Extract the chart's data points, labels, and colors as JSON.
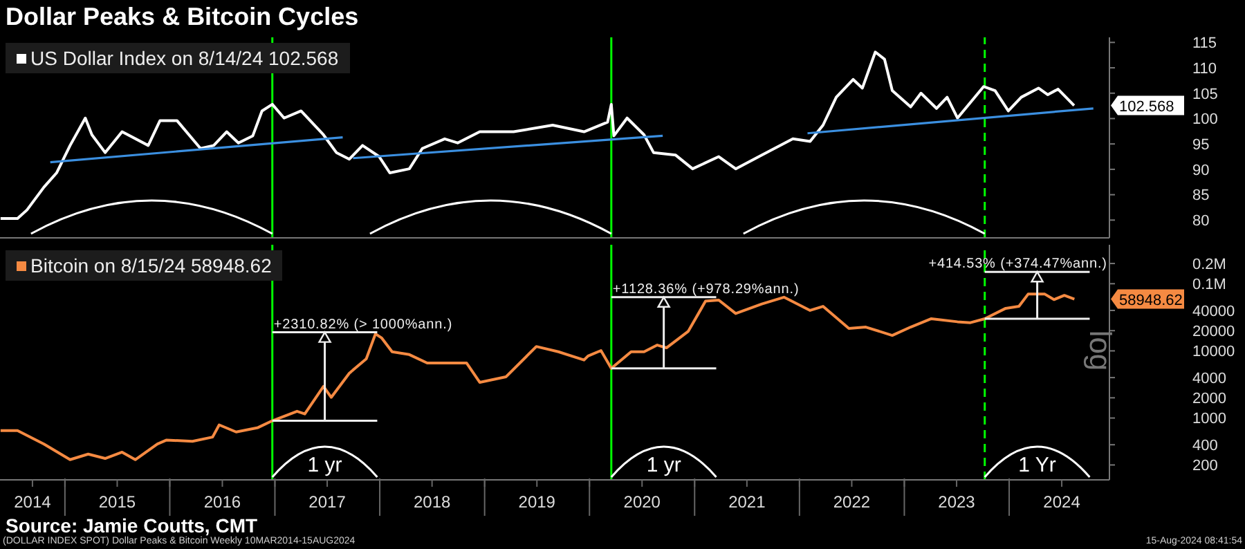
{
  "chart_data": [
    {
      "type": "line",
      "title": "Dollar Peaks & Bitcoin Cycles",
      "xlim": [
        "2014-05-20",
        "2024-12-15"
      ],
      "ylim": [
        76.5,
        116
      ],
      "yticks": [
        80,
        85,
        90,
        95,
        100,
        105,
        110,
        115
      ],
      "tick_labels": "y",
      "legend": "top left",
      "marker": "none",
      "line_style": "solid",
      "grid": false,
      "series": [
        {
          "name": "US Dollar Index on 8/14/24 102.568",
          "color": "#ffffff",
          "x": [
            "2014-05-22",
            "2014-07-20",
            "2014-08-22",
            "2014-10-20",
            "2014-12-03",
            "2015-01-19",
            "2015-03-13",
            "2015-04-05",
            "2015-05-21",
            "2015-07-19",
            "2015-10-18",
            "2015-11-28",
            "2016-01-26",
            "2016-04-17",
            "2016-06-02",
            "2016-07-17",
            "2016-08-27",
            "2016-10-16",
            "2016-11-17",
            "2016-12-23",
            "2017-02-02",
            "2017-04-02",
            "2017-06-19",
            "2017-08-03",
            "2017-09-17",
            "2017-11-02",
            "2017-12-30",
            "2018-02-05",
            "2018-04-14",
            "2018-05-29",
            "2018-08-15",
            "2018-09-29",
            "2018-12-15",
            "2019-04-12",
            "2019-08-26",
            "2019-12-13",
            "2020-03-04",
            "2020-03-17",
            "2020-03-26",
            "2020-05-11",
            "2020-07-09",
            "2020-08-11",
            "2020-10-27",
            "2020-12-25",
            "2021-03-26",
            "2021-05-24",
            "2021-08-23",
            "2021-12-09",
            "2022-02-07",
            "2022-03-24",
            "2022-05-09",
            "2022-07-07",
            "2022-08-08",
            "2022-09-22",
            "2022-10-24",
            "2022-11-20",
            "2023-01-23",
            "2023-02-28",
            "2023-04-23",
            "2023-05-30",
            "2023-07-05",
            "2023-10-04",
            "2023-11-13",
            "2023-12-29",
            "2024-02-12",
            "2024-04-12",
            "2024-05-14",
            "2024-06-19",
            "2024-08-14"
          ],
          "values": [
            80.3,
            80.3,
            82,
            86.5,
            89.3,
            94.7,
            100.1,
            96.8,
            93.3,
            97.4,
            94.7,
            99.6,
            99.6,
            94.1,
            94.7,
            97.4,
            95.2,
            96.6,
            101.5,
            102.8,
            100.1,
            101.5,
            96.8,
            93.3,
            92,
            94.7,
            92.5,
            89.3,
            90.1,
            94.1,
            96,
            95.2,
            97.4,
            97.4,
            98.7,
            97.4,
            99.3,
            102.8,
            96.6,
            100.1,
            96.8,
            93.3,
            92.8,
            90.1,
            92.5,
            90.1,
            92.8,
            96,
            95.5,
            98.7,
            104.2,
            107.7,
            106,
            113.1,
            111.7,
            105.5,
            102.3,
            105,
            102,
            104.2,
            100.1,
            106.3,
            105.5,
            101.5,
            104.2,
            106,
            104.7,
            105.8,
            102.568
          ]
        },
        {
          "type": "line",
          "color": "#3b8fe0",
          "x": [
            "2014-11-11",
            "2017-08-25"
          ],
          "values": [
            91.4,
            96.3
          ]
        },
        {
          "type": "line",
          "color": "#3b8fe0",
          "x": [
            "2017-09-30",
            "2020-09-12"
          ],
          "values": [
            92.2,
            96.6
          ]
        },
        {
          "type": "line",
          "color": "#3b8fe0",
          "x": [
            "2022-01-29",
            "2024-10-20"
          ],
          "values": [
            97.1,
            102
          ]
        }
      ],
      "ref_lines": [
        {
          "axis": "x",
          "value": "2016-12-23",
          "color": "#00ff00",
          "line_style": "solid"
        },
        {
          "axis": "x",
          "value": "2020-03-17",
          "color": "#00ff00",
          "line_style": "solid"
        },
        {
          "axis": "x",
          "value": "2023-10-08",
          "color": "#00ff00",
          "line_style": "dashed"
        }
      ],
      "annotations": [
        "102.568"
      ]
    },
    {
      "type": "line",
      "xlim": [
        "2014-05-20",
        "2024-12-15"
      ],
      "ylim": [
        120,
        380000
      ],
      "log": true,
      "yticks": [
        200,
        400,
        1000,
        2000,
        4000,
        10000,
        20000,
        40000,
        {
          "value": 100000,
          "label": "0.1M"
        },
        {
          "value": 200000,
          "label": "0.2M"
        }
      ],
      "xticks": [
        {
          "value": "2014-09-10",
          "label": "2014"
        },
        {
          "value": "2015-01-01",
          "label": null
        },
        {
          "value": "2015-07-02",
          "label": "2015"
        },
        {
          "value": "2016-01-01",
          "label": null
        },
        {
          "value": "2016-07-02",
          "label": "2016"
        },
        {
          "value": "2017-01-01",
          "label": null
        },
        {
          "value": "2017-07-02",
          "label": "2017"
        },
        {
          "value": "2018-01-01",
          "label": null
        },
        {
          "value": "2018-07-02",
          "label": "2018"
        },
        {
          "value": "2019-01-01",
          "label": null
        },
        {
          "value": "2019-07-02",
          "label": "2019"
        },
        {
          "value": "2020-01-01",
          "label": null
        },
        {
          "value": "2020-07-02",
          "label": "2020"
        },
        {
          "value": "2021-01-01",
          "label": null
        },
        {
          "value": "2021-07-02",
          "label": "2021"
        },
        {
          "value": "2022-01-01",
          "label": null
        },
        {
          "value": "2022-07-02",
          "label": "2022"
        },
        {
          "value": "2023-01-01",
          "label": null
        },
        {
          "value": "2023-07-02",
          "label": "2023"
        },
        {
          "value": "2024-01-01",
          "label": null
        },
        {
          "value": "2024-07-02",
          "label": "2024"
        }
      ],
      "legend": "top left",
      "marker": "none",
      "line_style": "solid",
      "grid": false,
      "series": [
        {
          "name": "Bitcoin on 8/15/24 58948.62",
          "color": "#f58a42",
          "x": [
            "2014-05-22",
            "2014-07-20",
            "2014-10-20",
            "2015-01-19",
            "2015-03-23",
            "2015-05-21",
            "2015-07-19",
            "2015-09-03",
            "2015-11-19",
            "2015-12-21",
            "2016-03-20",
            "2016-05-29",
            "2016-06-21",
            "2016-08-19",
            "2016-11-03",
            "2016-12-23",
            "2017-03-19",
            "2017-04-15",
            "2017-06-19",
            "2017-07-16",
            "2017-09-17",
            "2017-11-15",
            "2017-12-17",
            "2018-01-08",
            "2018-02-13",
            "2018-04-14",
            "2018-06-15",
            "2018-10-30",
            "2018-12-15",
            "2019-03-16",
            "2019-06-30",
            "2019-09-15",
            "2019-12-13",
            "2019-12-27",
            "2020-02-10",
            "2020-03-17",
            "2020-05-25",
            "2020-07-09",
            "2020-08-24",
            "2020-09-25",
            "2020-12-10",
            "2021-02-08",
            "2021-03-26",
            "2021-05-24",
            "2021-08-23",
            "2021-11-08",
            "2022-02-07",
            "2022-03-24",
            "2022-06-22",
            "2022-08-20",
            "2022-11-20",
            "2023-01-23",
            "2023-04-05",
            "2023-07-05",
            "2023-08-19",
            "2023-10-08",
            "2023-12-20",
            "2024-02-04",
            "2024-03-07",
            "2024-05-04",
            "2024-06-05",
            "2024-07-11",
            "2024-08-15"
          ],
          "values": [
            650,
            650,
            410,
            240,
            290,
            250,
            310,
            240,
            410,
            470,
            450,
            520,
            790,
            620,
            720,
            910,
            1260,
            1150,
            2950,
            2030,
            4650,
            7600,
            17900,
            15500,
            9700,
            8800,
            6600,
            6600,
            3400,
            4100,
            11600,
            9700,
            7300,
            8400,
            10100,
            5480,
            9700,
            9700,
            12200,
            11100,
            19600,
            55000,
            57000,
            36000,
            50000,
            63000,
            40000,
            46000,
            21600,
            22600,
            17000,
            22600,
            30100,
            27100,
            26300,
            30100,
            43000,
            46000,
            70000,
            70000,
            58000,
            67000,
            58948.62
          ]
        }
      ],
      "ref_lines": [
        {
          "axis": "x",
          "value": "2016-12-23",
          "color": "#00ff00",
          "line_style": "solid"
        },
        {
          "axis": "x",
          "value": "2020-03-17",
          "color": "#00ff00",
          "line_style": "solid"
        },
        {
          "axis": "x",
          "value": "2023-10-08",
          "color": "#00ff00",
          "line_style": "dashed"
        }
      ],
      "annotations": [
        "58948.62",
        "1 yr",
        "1 yr",
        "1 Yr",
        {
          "text": "+2310.82% (> 1000%ann.)",
          "x": "2016-12-23",
          "y": 18900
        },
        {
          "text": "+1128.36% (+978.29%ann.)",
          "x": "2020-03-17",
          "y": 63000
        },
        {
          "text": "+414.53% (+374.47%ann.)",
          "x": "2023-10-08",
          "y": 150000
        },
        "log",
        "Source: Jamie Coutts, CMT",
        "(DOLLAR INDEX SPOT) Dollar Peaks & Bitcoin Weekly 10MAR2014-15AUG2024",
        "15-Aug-2024 08:41:54"
      ]
    }
  ]
}
